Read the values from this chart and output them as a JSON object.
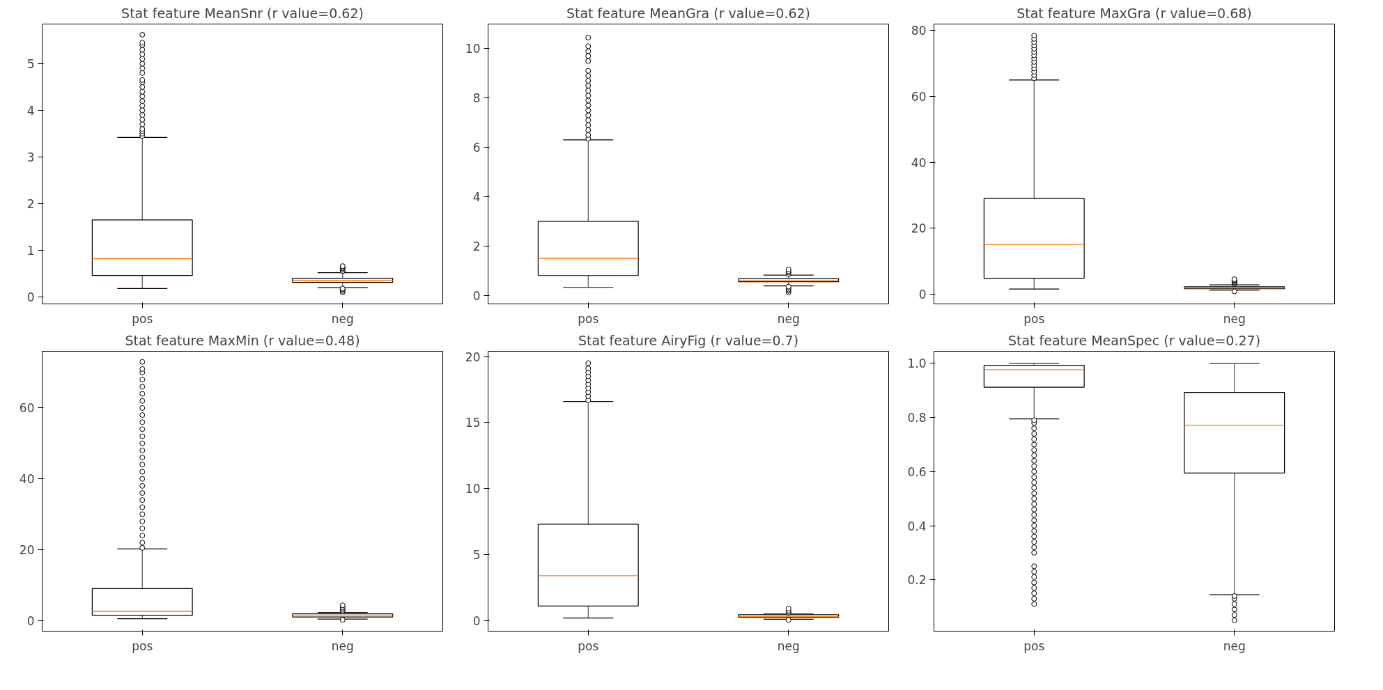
{
  "chart_data": [
    {
      "type": "box",
      "title": "Stat feature MeanSnr (r value=0.62)",
      "categories": [
        "pos",
        "neg"
      ],
      "ylim": [
        -0.15,
        5.85
      ],
      "yticks": [
        0,
        1,
        2,
        3,
        4,
        5
      ],
      "boxes": [
        {
          "low": 0.18,
          "q1": 0.46,
          "median": 0.82,
          "q3": 1.65,
          "high": 3.42,
          "outliers": [
            3.45,
            3.5,
            3.55,
            3.6,
            3.7,
            3.8,
            3.9,
            4.0,
            4.1,
            4.2,
            4.3,
            4.4,
            4.5,
            4.6,
            4.65,
            4.8,
            4.9,
            5.0,
            5.1,
            5.2,
            5.3,
            5.4,
            5.45,
            5.62
          ]
        },
        {
          "low": 0.2,
          "q1": 0.31,
          "median": 0.35,
          "q3": 0.4,
          "high": 0.52,
          "outliers": [
            0.1,
            0.13,
            0.16,
            0.18,
            0.55,
            0.58,
            0.61,
            0.64,
            0.66
          ]
        }
      ]
    },
    {
      "type": "box",
      "title": "Stat feature MeanGra (r value=0.62)",
      "categories": [
        "pos",
        "neg"
      ],
      "ylim": [
        -0.35,
        11.0
      ],
      "yticks": [
        0,
        2,
        4,
        6,
        8,
        10
      ],
      "boxes": [
        {
          "low": 0.32,
          "q1": 0.8,
          "median": 1.5,
          "q3": 3.0,
          "high": 6.3,
          "outliers": [
            6.35,
            6.5,
            6.7,
            6.9,
            7.1,
            7.3,
            7.5,
            7.7,
            7.9,
            8.1,
            8.3,
            8.5,
            8.7,
            8.9,
            9.1,
            9.5,
            9.7,
            9.9,
            10.1,
            10.45
          ]
        },
        {
          "low": 0.38,
          "q1": 0.55,
          "median": 0.6,
          "q3": 0.67,
          "high": 0.82,
          "outliers": [
            0.12,
            0.18,
            0.24,
            0.3,
            0.35,
            0.86,
            0.92,
            0.98,
            1.05
          ]
        }
      ]
    },
    {
      "type": "box",
      "title": "Stat feature MaxGra (r value=0.68)",
      "categories": [
        "pos",
        "neg"
      ],
      "ylim": [
        -3,
        82
      ],
      "yticks": [
        0,
        20,
        40,
        60,
        80
      ],
      "boxes": [
        {
          "low": 1.5,
          "q1": 4.8,
          "median": 15,
          "q3": 29,
          "high": 65,
          "outliers": [
            65.5,
            66.5,
            67.5,
            68.5,
            69.5,
            70.5,
            71.5,
            72.5,
            73.5,
            74.5,
            75.5,
            76.5,
            77.5,
            78.5
          ]
        },
        {
          "low": 1.2,
          "q1": 1.6,
          "median": 1.9,
          "q3": 2.2,
          "high": 2.8,
          "outliers": [
            0.8,
            3.0,
            3.3,
            3.6,
            3.9,
            4.2,
            4.5
          ]
        }
      ]
    },
    {
      "type": "box",
      "title": "Stat feature MaxMin (r value=0.48)",
      "categories": [
        "pos",
        "neg"
      ],
      "ylim": [
        -3,
        76
      ],
      "yticks": [
        0,
        20,
        40,
        60
      ],
      "boxes": [
        {
          "low": 0.5,
          "q1": 1.5,
          "median": 2.6,
          "q3": 9,
          "high": 20.2,
          "outliers": [
            20.5,
            22,
            24,
            26,
            28,
            30,
            32,
            34,
            36,
            38,
            40,
            42,
            44,
            46,
            48,
            50,
            52,
            54,
            56,
            58,
            60,
            62,
            64,
            66,
            68,
            70,
            71,
            73
          ]
        },
        {
          "low": 0.4,
          "q1": 1.0,
          "median": 1.3,
          "q3": 1.9,
          "high": 2.3,
          "outliers": [
            0.2,
            2.6,
            3.0,
            3.4,
            3.8,
            4.3
          ]
        }
      ]
    },
    {
      "type": "box",
      "title": "Stat feature AiryFig (r value=0.7)",
      "categories": [
        "pos",
        "neg"
      ],
      "ylim": [
        -0.8,
        20.4
      ],
      "yticks": [
        0,
        5,
        10,
        15,
        20
      ],
      "boxes": [
        {
          "low": 0.2,
          "q1": 1.1,
          "median": 3.4,
          "q3": 7.3,
          "high": 16.6,
          "outliers": [
            16.7,
            17.0,
            17.3,
            17.6,
            17.9,
            18.2,
            18.5,
            18.8,
            19.1,
            19.5
          ]
        },
        {
          "low": 0.1,
          "q1": 0.25,
          "median": 0.3,
          "q3": 0.45,
          "high": 0.5,
          "outliers": [
            0.05,
            0.55,
            0.65,
            0.75,
            0.9
          ]
        }
      ]
    },
    {
      "type": "box",
      "title": "Stat feature MeanSpec (r value=0.27)",
      "categories": [
        "pos",
        "neg"
      ],
      "ylim": [
        0.01,
        1.045
      ],
      "yticks": [
        0.2,
        0.4,
        0.6,
        0.8,
        {
          "value": 1,
          "label": "1.0"
        }
      ],
      "boxes": [
        {
          "low": 0.795,
          "q1": 0.912,
          "median": 0.977,
          "q3": 0.993,
          "high": 1.0,
          "outliers": [
            0.11,
            0.13,
            0.15,
            0.17,
            0.19,
            0.21,
            0.23,
            0.25,
            0.3,
            0.32,
            0.34,
            0.36,
            0.38,
            0.4,
            0.42,
            0.44,
            0.46,
            0.48,
            0.5,
            0.52,
            0.54,
            0.56,
            0.58,
            0.6,
            0.62,
            0.64,
            0.66,
            0.68,
            0.7,
            0.72,
            0.74,
            0.76,
            0.78,
            0.79
          ]
        },
        {
          "low": 0.145,
          "q1": 0.595,
          "median": 0.771,
          "q3": 0.893,
          "high": 1.0,
          "outliers": [
            0.05,
            0.07,
            0.09,
            0.11,
            0.13,
            0.14
          ]
        }
      ]
    }
  ]
}
